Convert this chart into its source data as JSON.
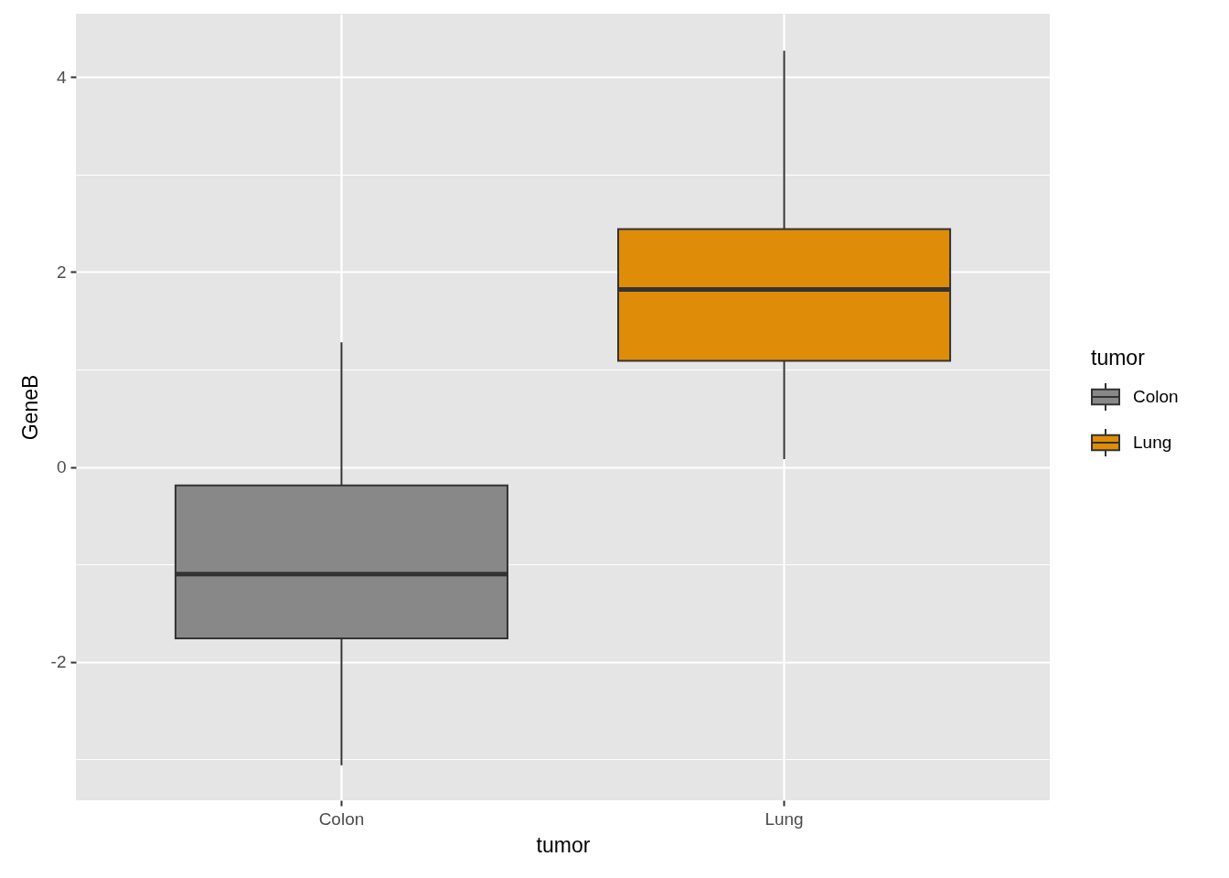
{
  "chart_data": {
    "type": "box",
    "xlabel": "tumor",
    "ylabel": "GeneB",
    "legend_title": "tumor",
    "categories": [
      "Colon",
      "Lung"
    ],
    "series": [
      {
        "name": "Colon",
        "color": "#888888",
        "boxes": [
          {
            "low": -3.06,
            "q1": -1.76,
            "median": -1.1,
            "q3": -0.19,
            "high": 1.28
          },
          null
        ]
      },
      {
        "name": "Lung",
        "color": "#df8c09",
        "boxes": [
          null,
          {
            "low": 0.08,
            "q1": 1.09,
            "median": 1.82,
            "q3": 2.44,
            "high": 4.27
          }
        ]
      }
    ],
    "ylim": [
      -3.42,
      4.65
    ],
    "yticks": [
      {
        "value": -3,
        "label": null
      },
      -2,
      {
        "value": -1,
        "label": null
      },
      0,
      {
        "value": 1,
        "label": null
      },
      2,
      {
        "value": 3,
        "label": null
      },
      4
    ],
    "grid": true,
    "legend": "right"
  }
}
